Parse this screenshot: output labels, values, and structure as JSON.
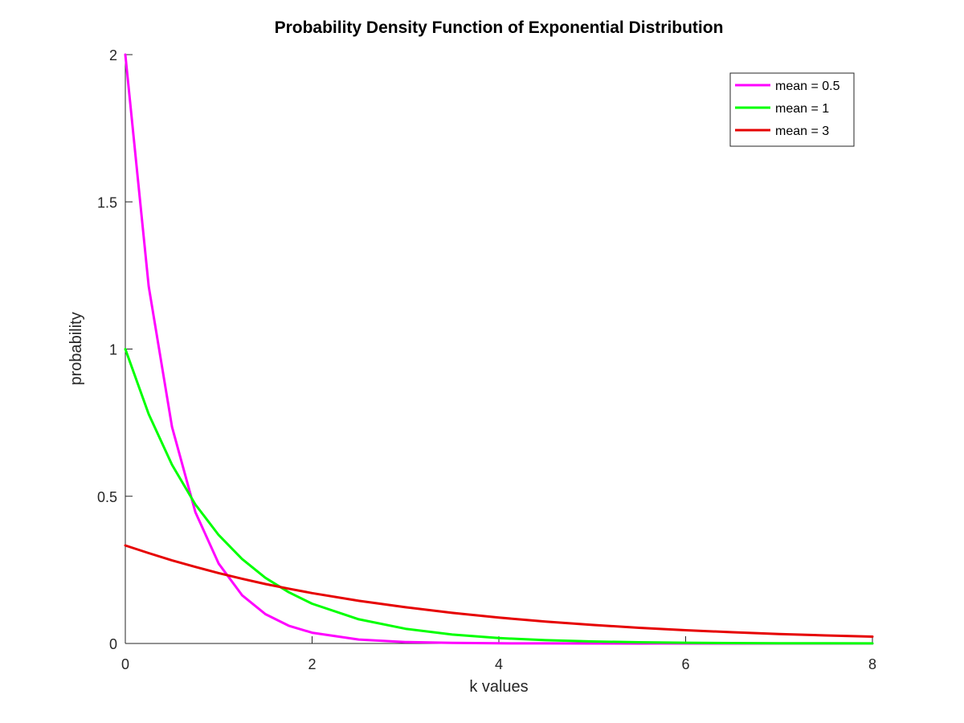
{
  "chart_data": {
    "type": "line",
    "title": "Probability Density Function of Exponential Distribution",
    "xlabel": "k values",
    "ylabel": "probability",
    "xlim": [
      0,
      8
    ],
    "ylim": [
      0,
      2
    ],
    "xticks": [
      "0",
      "2",
      "4",
      "6",
      "8"
    ],
    "yticks": [
      "0",
      "0.5",
      "1",
      "1.5",
      "2"
    ],
    "grid": false,
    "legend_position": "top-right",
    "x": [
      0,
      0.25,
      0.5,
      0.75,
      1,
      1.25,
      1.5,
      1.75,
      2,
      2.5,
      3,
      3.5,
      4,
      4.5,
      5,
      5.5,
      6,
      6.5,
      7,
      7.5,
      8
    ],
    "series": [
      {
        "name": "mean = 0.5",
        "color": "#ff00ff",
        "values": [
          2.0,
          1.213,
          0.736,
          0.446,
          0.271,
          0.164,
          0.0996,
          0.0604,
          0.0366,
          0.0135,
          0.00496,
          0.00182,
          0.00067,
          0.00025,
          9e-05,
          3e-05,
          1e-05,
          0.0,
          0.0,
          0.0,
          0.0
        ]
      },
      {
        "name": "mean = 1",
        "color": "#00ff00",
        "values": [
          1.0,
          0.779,
          0.607,
          0.472,
          0.368,
          0.287,
          0.223,
          0.174,
          0.135,
          0.0821,
          0.0498,
          0.0302,
          0.0183,
          0.0111,
          0.0067,
          0.0041,
          0.0025,
          0.0015,
          0.0009,
          0.0006,
          0.0003
        ]
      },
      {
        "name": "mean = 3",
        "color": "#e60000",
        "values": [
          0.333,
          0.307,
          0.282,
          0.26,
          0.239,
          0.22,
          0.202,
          0.186,
          0.171,
          0.145,
          0.123,
          0.104,
          0.0879,
          0.0744,
          0.063,
          0.0533,
          0.0451,
          0.0382,
          0.0323,
          0.0274,
          0.0232
        ]
      }
    ]
  }
}
